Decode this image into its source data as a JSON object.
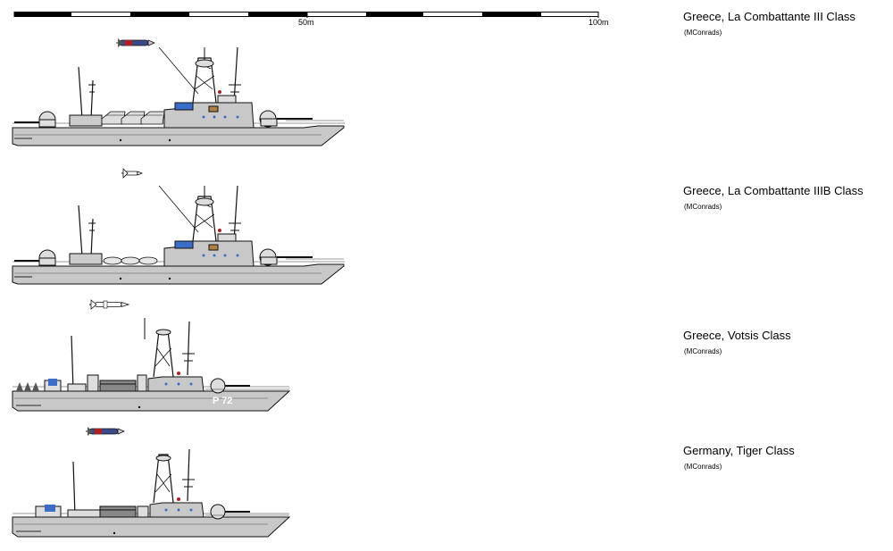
{
  "scale": {
    "mid_label": "50m",
    "end_label": "100m"
  },
  "ships": [
    {
      "title": "Greece, La Combattante III Class",
      "credit": "(MConrads)"
    },
    {
      "title": "Greece, La Combattante IIIB Class",
      "credit": "(MConrads)"
    },
    {
      "title": "Greece, Votsis Class",
      "credit": "(MConrads)"
    },
    {
      "title": "Germany, Tiger Class",
      "credit": "(MConrads)"
    }
  ],
  "colors": {
    "hull": "#c8c8c8",
    "hull_dark": "#8a8a8a",
    "accent_blue": "#3a6ec8",
    "accent_red": "#b02020"
  }
}
